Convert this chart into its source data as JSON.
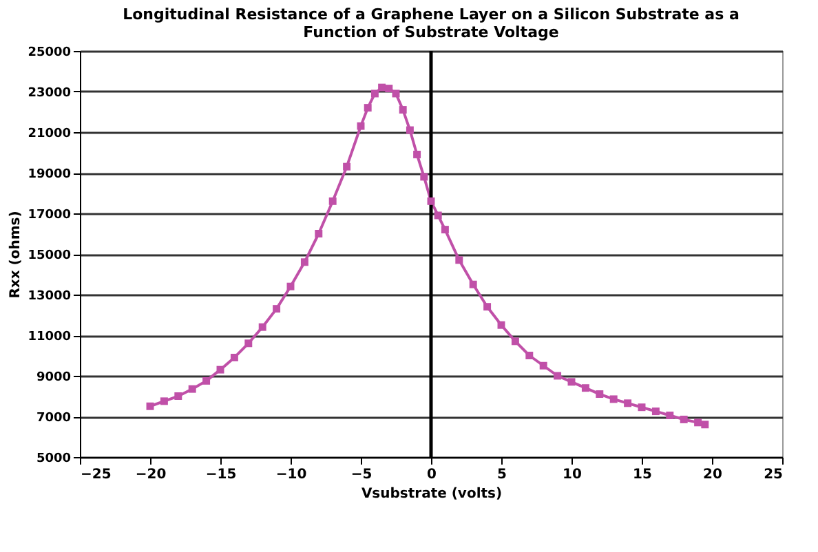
{
  "chart_data": {
    "type": "line",
    "title": "Longitudinal Resistance of a Graphene Layer on a Silicon Substrate as a Function of Substrate Voltage",
    "xlabel": "Vsubstrate (volts)",
    "ylabel": "Rxx (ohms)",
    "x": [
      -20,
      -19,
      -18,
      -17,
      -16,
      -15,
      -14,
      -13,
      -12,
      -11,
      -10,
      -9,
      -8,
      -7,
      -6,
      -5,
      -4.5,
      -4,
      -3.5,
      -3,
      -2.5,
      -2,
      -1.5,
      -1,
      -0.5,
      0,
      0.5,
      1,
      2,
      3,
      4,
      5,
      6,
      7,
      8,
      9,
      10,
      11,
      12,
      13,
      14,
      15,
      16,
      17,
      18,
      19,
      19.5
    ],
    "series": [
      {
        "color": "#c050a8",
        "values": [
          7500,
          7750,
          8000,
          8350,
          8750,
          9300,
          9900,
          10600,
          11400,
          12300,
          13400,
          14600,
          16000,
          17600,
          19300,
          21300,
          22200,
          22900,
          23200,
          23150,
          22900,
          22100,
          21100,
          19900,
          18800,
          17600,
          16900,
          16200,
          14700,
          13500,
          12400,
          11500,
          10700,
          10000,
          9500,
          9000,
          8700,
          8400,
          8100,
          7850,
          7650,
          7450,
          7250,
          7050,
          6850,
          6700,
          6600
        ]
      }
    ],
    "xlim": [
      -25,
      25
    ],
    "xticks": [
      -25,
      -20,
      -15,
      -10,
      -5,
      0,
      5,
      10,
      15,
      20,
      25
    ],
    "ylim": [
      5000,
      25000
    ],
    "yticks": [
      5000,
      7000,
      9000,
      11000,
      13000,
      15000,
      17000,
      19000,
      21000,
      23000,
      25000
    ],
    "grid": "y",
    "marker": "square",
    "line_style": "solid",
    "ref_lines": [
      {
        "axis": "x",
        "value": 0,
        "color": "#000000",
        "line_style": "solid"
      }
    ]
  }
}
